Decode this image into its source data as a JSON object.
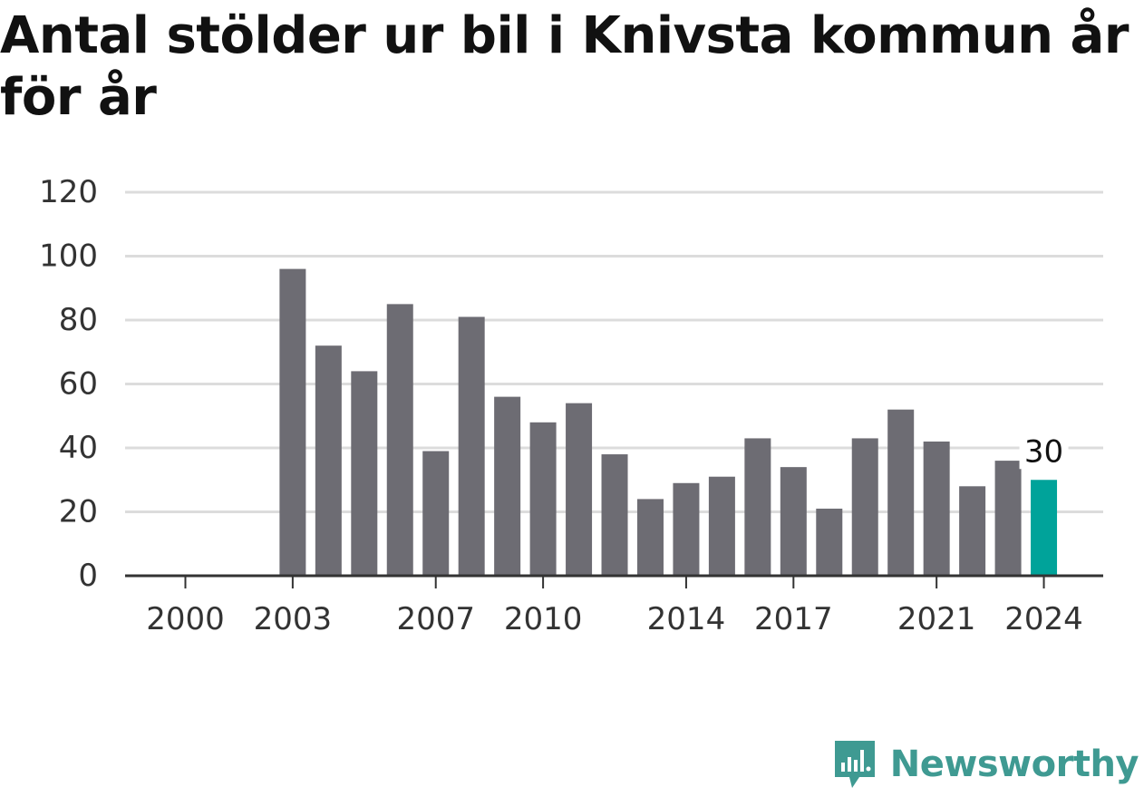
{
  "header": {
    "title": "Antal stölder ur bil i Knivsta kommun år för år"
  },
  "brand": {
    "name": "Newsworthy",
    "logo_icon": "bar-chart-speech-bubble-icon",
    "color": "#3f9a92"
  },
  "chart_data": {
    "type": "bar",
    "title": "Antal stölder ur bil i Knivsta kommun år för år",
    "xlabel": "",
    "ylabel": "",
    "categories": [
      2000,
      2001,
      2002,
      2003,
      2004,
      2005,
      2006,
      2007,
      2008,
      2009,
      2010,
      2011,
      2012,
      2013,
      2014,
      2015,
      2016,
      2017,
      2018,
      2019,
      2020,
      2021,
      2022,
      2023,
      2024
    ],
    "values": [
      0,
      0,
      0,
      96,
      72,
      64,
      85,
      39,
      81,
      56,
      48,
      54,
      38,
      24,
      29,
      31,
      43,
      34,
      21,
      43,
      52,
      42,
      28,
      36,
      30
    ],
    "x_tick_labels": [
      "2000",
      "2003",
      "2007",
      "2010",
      "2014",
      "2017",
      "2021",
      "2024"
    ],
    "y_ticks": [
      "0",
      "20",
      "40",
      "60",
      "80",
      "100",
      "120"
    ],
    "ylim": [
      0,
      120
    ],
    "grid": true,
    "highlight": {
      "category": 2024,
      "label": "30"
    },
    "colors": {
      "bar": "#6d6c73",
      "highlight": "#00a39a",
      "grid": "#dcdcdc",
      "axis": "#333333",
      "text": "#333333"
    }
  }
}
